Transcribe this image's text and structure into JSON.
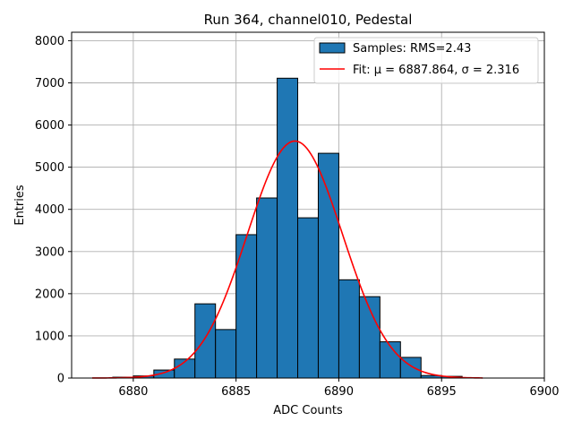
{
  "chart_data": {
    "type": "bar",
    "title": "Run 364, channel010, Pedestal",
    "xlabel": "ADC Counts",
    "ylabel": "Entries",
    "xlim": [
      6877,
      6900
    ],
    "ylim": [
      0,
      8200
    ],
    "x_ticks": [
      6880,
      6885,
      6890,
      6895,
      6900
    ],
    "y_ticks": [
      0,
      1000,
      2000,
      3000,
      4000,
      5000,
      6000,
      7000,
      8000
    ],
    "grid": true,
    "legend_position": "top-right",
    "bin_edges": [
      6878,
      6879,
      6880,
      6881,
      6882,
      6883,
      6884,
      6885,
      6886,
      6887,
      6888,
      6889,
      6890,
      6891,
      6892,
      6893,
      6894,
      6895,
      6896,
      6897
    ],
    "values": [
      0,
      20,
      50,
      190,
      450,
      1760,
      1150,
      3400,
      4270,
      7110,
      3800,
      5330,
      2330,
      1930,
      860,
      490,
      60,
      40,
      0
    ],
    "series": [
      {
        "name": "Samples: RMS=2.43",
        "kind": "histogram",
        "color": "#1f77b4"
      },
      {
        "name": "Fit: μ = 6887.864, σ = 2.316",
        "kind": "gaussian",
        "mu": 6887.864,
        "sigma": 2.316,
        "amplitude": 5620,
        "x_range": [
          6878,
          6897
        ],
        "color": "#ff0000"
      }
    ]
  }
}
